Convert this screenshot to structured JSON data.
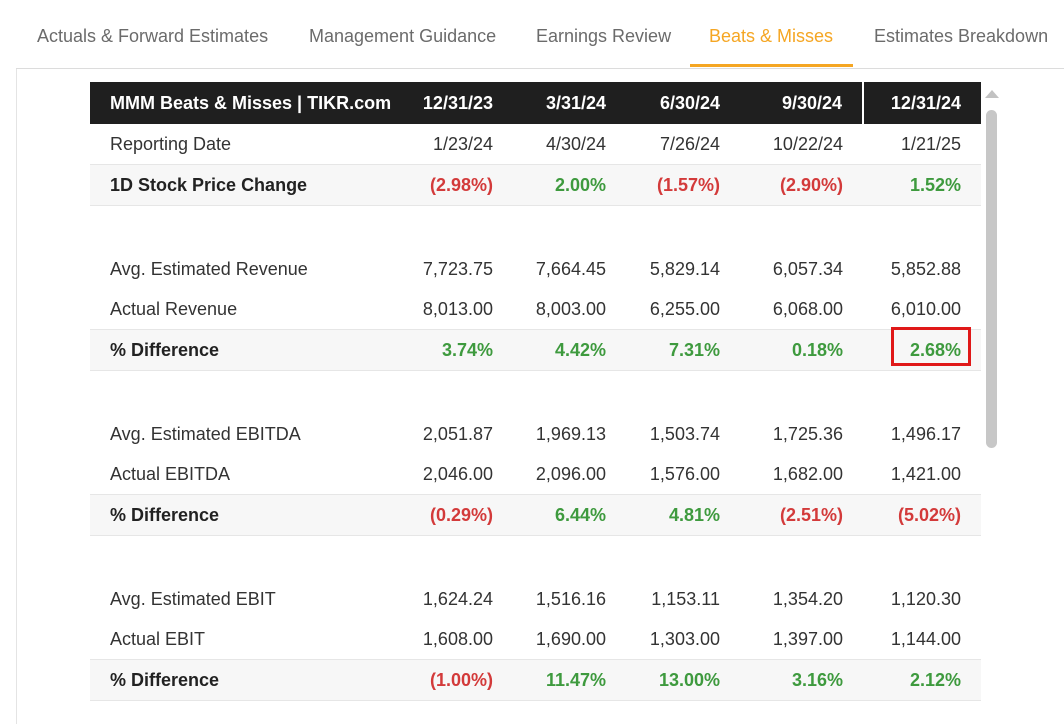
{
  "tabs": [
    {
      "label": "Actuals & Forward Estimates",
      "active": false
    },
    {
      "label": "Management Guidance",
      "active": false
    },
    {
      "label": "Earnings Review",
      "active": false
    },
    {
      "label": "Beats & Misses",
      "active": true
    },
    {
      "label": "Estimates Breakdown",
      "active": false
    }
  ],
  "table": {
    "title": "MMM Beats & Misses | TIKR.com",
    "columns": [
      "12/31/23",
      "3/31/24",
      "6/30/24",
      "9/30/24",
      "12/31/24"
    ],
    "rows": {
      "reporting_date": {
        "label": "Reporting Date",
        "values": [
          "1/23/24",
          "4/30/24",
          "7/26/24",
          "10/22/24",
          "1/21/25"
        ]
      },
      "price_change": {
        "label": "1D Stock Price Change",
        "values": [
          "(2.98%)",
          "2.00%",
          "(1.57%)",
          "(2.90%)",
          "1.52%"
        ]
      },
      "est_revenue": {
        "label": "Avg. Estimated Revenue",
        "values": [
          "7,723.75",
          "7,664.45",
          "5,829.14",
          "6,057.34",
          "5,852.88"
        ]
      },
      "act_revenue": {
        "label": "Actual Revenue",
        "values": [
          "8,013.00",
          "8,003.00",
          "6,255.00",
          "6,068.00",
          "6,010.00"
        ]
      },
      "diff_revenue": {
        "label": "% Difference",
        "values": [
          "3.74%",
          "4.42%",
          "7.31%",
          "0.18%",
          "2.68%"
        ]
      },
      "est_ebitda": {
        "label": "Avg. Estimated EBITDA",
        "values": [
          "2,051.87",
          "1,969.13",
          "1,503.74",
          "1,725.36",
          "1,496.17"
        ]
      },
      "act_ebitda": {
        "label": "Actual EBITDA",
        "values": [
          "2,046.00",
          "2,096.00",
          "1,576.00",
          "1,682.00",
          "1,421.00"
        ]
      },
      "diff_ebitda": {
        "label": "% Difference",
        "values": [
          "(0.29%)",
          "6.44%",
          "4.81%",
          "(2.51%)",
          "(5.02%)"
        ]
      },
      "est_ebit": {
        "label": "Avg. Estimated EBIT",
        "values": [
          "1,624.24",
          "1,516.16",
          "1,153.11",
          "1,354.20",
          "1,120.30"
        ]
      },
      "act_ebit": {
        "label": "Actual EBIT",
        "values": [
          "1,608.00",
          "1,690.00",
          "1,303.00",
          "1,397.00",
          "1,144.00"
        ]
      },
      "diff_ebit": {
        "label": "% Difference",
        "values": [
          "(1.00%)",
          "11.47%",
          "13.00%",
          "3.16%",
          "2.12%"
        ]
      }
    }
  },
  "colors": {
    "accent": "#f5a623",
    "positive": "#3e9a3e",
    "negative": "#d33a3a",
    "highlight": "#e01818",
    "header_bg": "#1f1f1f"
  },
  "icons": {
    "scroll_up": "scroll-up-arrow-icon"
  }
}
